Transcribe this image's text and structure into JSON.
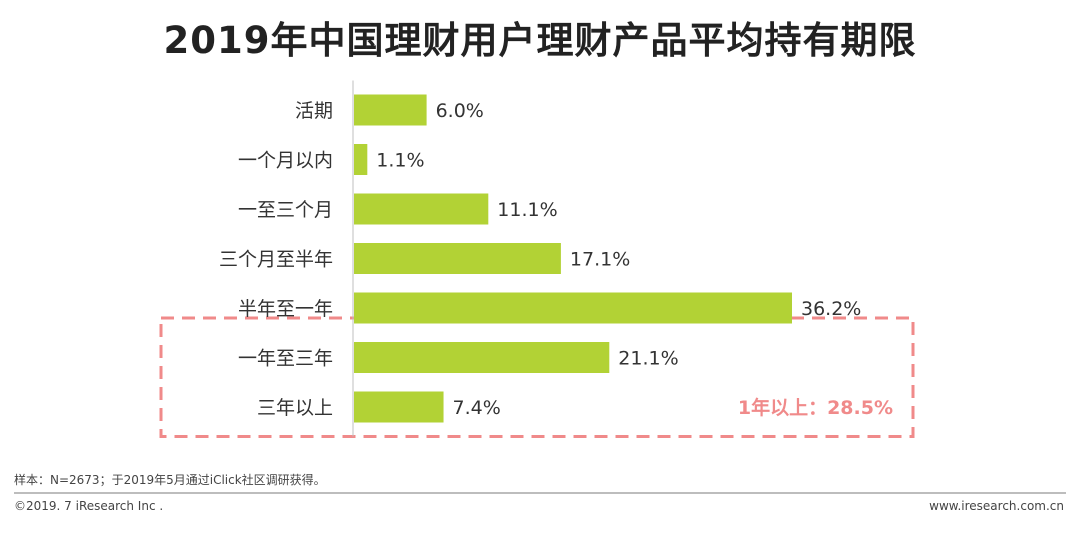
{
  "title": "2019年中国理财用户理财产品平均持有期限",
  "chart_data": {
    "type": "bar",
    "orientation": "horizontal",
    "categories": [
      "活期",
      "一个月以内",
      "一至三个月",
      "三个月至半年",
      "半年至一年",
      "一年至三年",
      "三年以上"
    ],
    "values": [
      6.0,
      1.1,
      11.1,
      17.1,
      36.2,
      21.1,
      7.4
    ],
    "value_labels": [
      "6.0%",
      "1.1%",
      "11.1%",
      "17.1%",
      "36.2%",
      "21.1%",
      "7.4%"
    ],
    "unit": "%",
    "bar_color": "#b2d235",
    "annotation": {
      "text": "1年以上：28.5%",
      "color": "#f08a8a",
      "groups": [
        "一年至三年",
        "三年以上"
      ]
    }
  },
  "footnote": "样本：N=2673；于2019年5月通过iClick社区调研获得。",
  "copyright": "©2019. 7 iResearch Inc .",
  "website": "www.iresearch.com.cn"
}
